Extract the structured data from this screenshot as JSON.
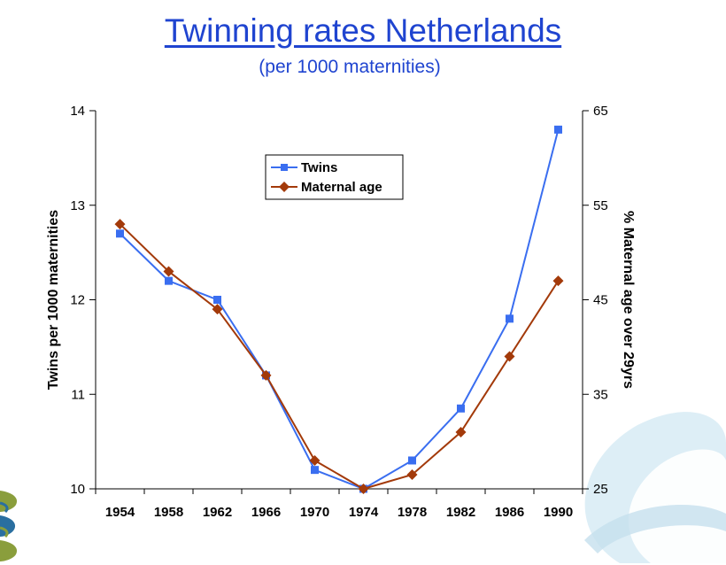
{
  "slide": {
    "title": "Twinning rates Netherlands",
    "subtitle": "(per 1000 maternities)"
  },
  "colors": {
    "title": "#1f44d0",
    "twins": "#3a6ef0",
    "maternal": "#a33a0a",
    "axis": "#000000"
  },
  "chart_data": {
    "type": "line",
    "title": "Twinning rates Netherlands",
    "subtitle": "(per 1000 maternities)",
    "categories": [
      "1954",
      "1958",
      "1962",
      "1966",
      "1970",
      "1974",
      "1978",
      "1982",
      "1986",
      "1990"
    ],
    "ylabel": "Twins per 1000 maternities",
    "ylabel_right": "% Maternal age over 29yrs",
    "ylim": [
      10,
      14
    ],
    "yticks": [
      10,
      11,
      12,
      13,
      14
    ],
    "y2lim": [
      25,
      65
    ],
    "y2ticks": [
      25,
      35,
      45,
      55,
      65
    ],
    "grid": false,
    "legend_position": "top-center",
    "series": [
      {
        "name": "Twins",
        "axis": "left",
        "marker": "square",
        "values": [
          12.7,
          12.2,
          12.0,
          11.2,
          10.2,
          10.0,
          10.3,
          10.85,
          11.8,
          13.8
        ]
      },
      {
        "name": "Maternal age",
        "axis": "right",
        "marker": "diamond",
        "values": [
          53,
          48,
          44,
          37,
          28,
          25,
          26.5,
          31,
          39,
          47
        ]
      }
    ]
  }
}
